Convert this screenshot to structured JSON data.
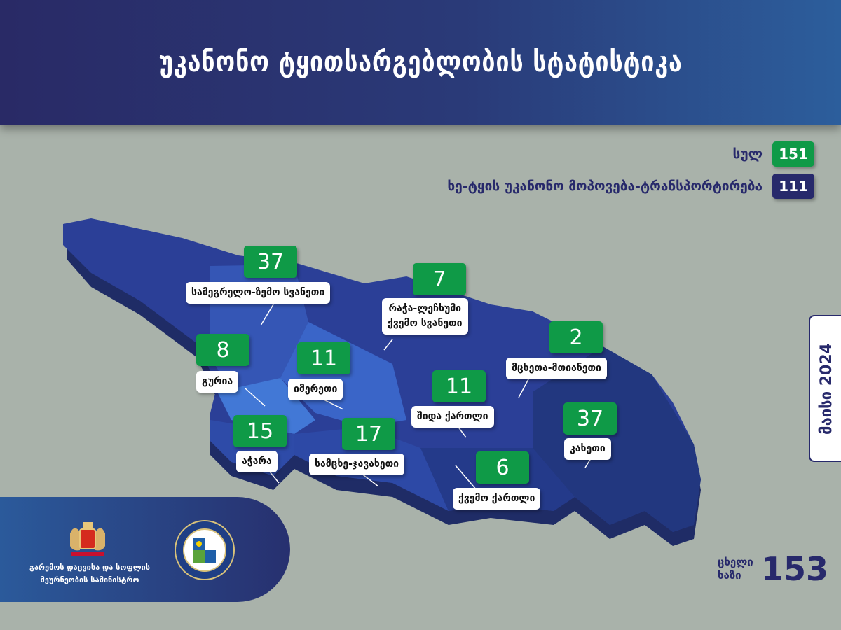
{
  "title": "უკანონო ტყითსარგებლობის სტატისტიკა",
  "legend": [
    {
      "label": "სულ",
      "value": "151",
      "color": "#0f9a47"
    },
    {
      "label": "ხე-ტყის უკანონო მოპოვება-ტრანსპორტირება",
      "value": "111",
      "color": "#27296b"
    }
  ],
  "regions": [
    {
      "name": "სამეგრელო-ზემო სვანეთი",
      "value": "37"
    },
    {
      "name": "რაჭა-ლეჩხუმი",
      "name2": "ქვემო სვანეთი",
      "value": "7"
    },
    {
      "name": "გურია",
      "value": "8"
    },
    {
      "name": "იმერეთი",
      "value": "11"
    },
    {
      "name": "მცხეთა-მთიანეთი",
      "value": "2"
    },
    {
      "name": "შიდა ქართლი",
      "value": "11"
    },
    {
      "name": "აჭარა",
      "value": "15"
    },
    {
      "name": "სამცხე-ჯავახეთი",
      "value": "17"
    },
    {
      "name": "კახეთი",
      "value": "37"
    },
    {
      "name": "ქვემო ქართლი",
      "value": "6"
    }
  ],
  "footer": {
    "ministry_line1": "გარემოს დაცვისა და სოფლის",
    "ministry_line2": "მეურნეობის სამინისტრო"
  },
  "date": "მაისი 2024",
  "hotline": {
    "label1": "ცხელი",
    "label2": "ხაზი",
    "number": "153"
  }
}
